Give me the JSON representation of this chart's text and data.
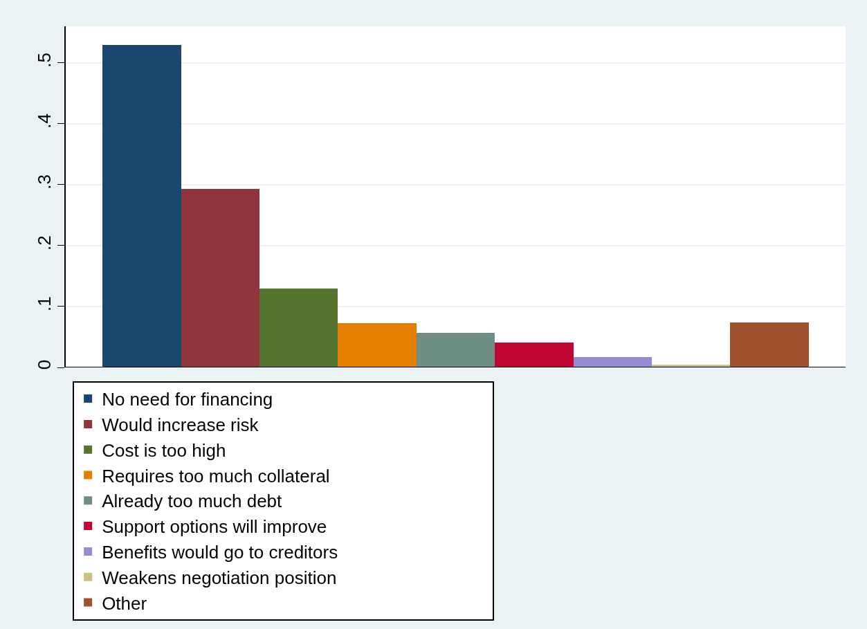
{
  "chart_data": {
    "type": "bar",
    "categories": [
      null,
      null,
      null,
      null,
      null,
      null,
      null,
      null,
      null
    ],
    "series": [
      {
        "name": "No need for financing",
        "color": "#1a476f",
        "values": [
          0.529,
          null,
          null,
          null,
          null,
          null,
          null,
          null,
          null
        ]
      },
      {
        "name": "Would increase risk",
        "color": "#90353b",
        "values": [
          null,
          0.293,
          null,
          null,
          null,
          null,
          null,
          null,
          null
        ]
      },
      {
        "name": "Cost is too high",
        "color": "#55752f",
        "values": [
          null,
          null,
          0.129,
          null,
          null,
          null,
          null,
          null,
          null
        ]
      },
      {
        "name": "Requires too much collateral",
        "color": "#e37e00",
        "values": [
          null,
          null,
          null,
          0.073,
          null,
          null,
          null,
          null,
          null
        ]
      },
      {
        "name": "Already too much debt",
        "color": "#6e8e84",
        "values": [
          null,
          null,
          null,
          null,
          0.057,
          null,
          null,
          null,
          null
        ]
      },
      {
        "name": "Support options will improve",
        "color": "#c10534",
        "values": [
          null,
          null,
          null,
          null,
          null,
          0.041,
          null,
          null,
          null
        ]
      },
      {
        "name": "Benefits would go to creditors",
        "color": "#938dd2",
        "values": [
          null,
          null,
          null,
          null,
          null,
          null,
          0.017,
          null,
          null
        ]
      },
      {
        "name": "Weakens negotiation position",
        "color": "#cac27e",
        "values": [
          null,
          null,
          null,
          null,
          null,
          null,
          null,
          0.004,
          null
        ]
      },
      {
        "name": "Other",
        "color": "#a0522d",
        "values": [
          null,
          null,
          null,
          null,
          null,
          null,
          null,
          null,
          0.074
        ]
      }
    ],
    "ylim": [
      0,
      0.56
    ],
    "yticks": [
      0,
      {
        "value": 0.1,
        "label": ".1"
      },
      {
        "value": 0.2,
        "label": ".2"
      },
      {
        "value": 0.3,
        "label": ".3"
      },
      {
        "value": 0.4,
        "label": ".4"
      },
      {
        "value": 0.5,
        "label": ".5"
      }
    ],
    "grid": "y",
    "legend": "bottom",
    "tick_labels": "y"
  }
}
